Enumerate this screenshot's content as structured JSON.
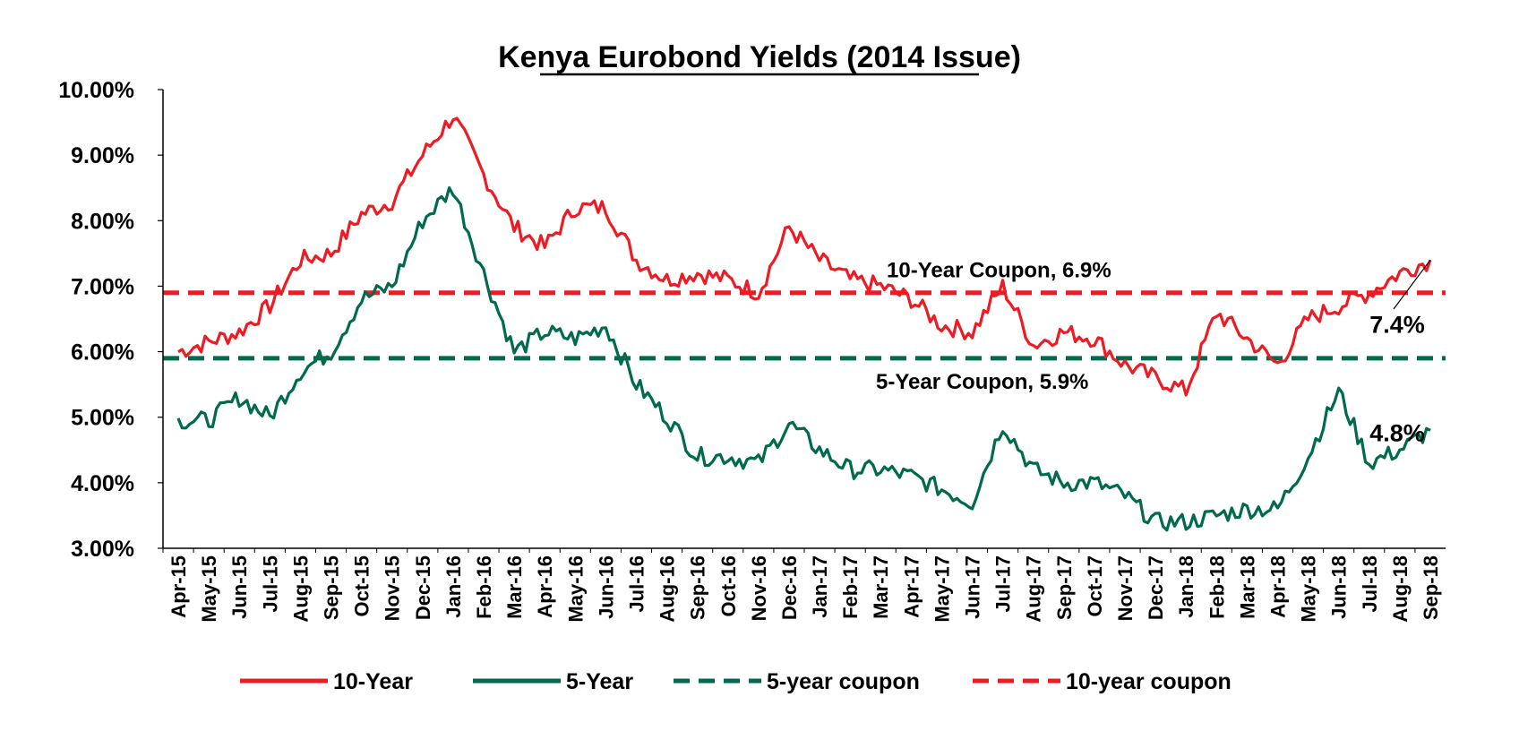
{
  "chart_data": {
    "type": "line",
    "title": "Kenya Eurobond  Yields (2014 Issue)",
    "xlabel": "",
    "ylabel": "",
    "ylim": [
      3.0,
      10.0
    ],
    "y_ticks": [
      "3.00%",
      "4.00%",
      "5.00%",
      "6.00%",
      "7.00%",
      "8.00%",
      "9.00%",
      "10.00%"
    ],
    "grid": false,
    "legend_position": "bottom",
    "categories": [
      "Apr-15",
      "May-15",
      "Jun-15",
      "Jul-15",
      "Aug-15",
      "Sep-15",
      "Oct-15",
      "Nov-15",
      "Dec-15",
      "Jan-16",
      "Feb-16",
      "Mar-16",
      "Apr-16",
      "May-16",
      "Jun-16",
      "Jul-16",
      "Aug-16",
      "Sep-16",
      "Oct-16",
      "Nov-16",
      "Dec-16",
      "Jan-17",
      "Feb-17",
      "Mar-17",
      "Apr-17",
      "May-17",
      "Jun-17",
      "Jul-17",
      "Aug-17",
      "Sep-17",
      "Oct-17",
      "Nov-17",
      "Dec-17",
      "Jan-18",
      "Feb-18",
      "Mar-18",
      "Apr-18",
      "May-18",
      "Jun-18",
      "Jul-18",
      "Aug-18",
      "Sep-18"
    ],
    "series": [
      {
        "name": "10-Year",
        "color": "#ed1c24",
        "style": "solid",
        "values": [
          6.0,
          6.15,
          6.3,
          6.7,
          7.4,
          7.5,
          8.1,
          8.3,
          9.0,
          9.6,
          8.7,
          7.9,
          7.6,
          8.2,
          8.2,
          7.4,
          7.1,
          7.2,
          7.1,
          6.9,
          7.9,
          7.4,
          7.1,
          7.0,
          6.8,
          6.4,
          6.3,
          7.0,
          6.1,
          6.3,
          6.2,
          5.8,
          5.6,
          5.4,
          6.6,
          6.2,
          5.8,
          6.5,
          6.7,
          6.9,
          7.2,
          7.4
        ]
      },
      {
        "name": "5-Year",
        "color": "#006a4e",
        "style": "solid",
        "values": [
          4.95,
          4.95,
          5.3,
          5.0,
          5.7,
          6.0,
          6.8,
          7.0,
          8.0,
          8.5,
          7.2,
          6.0,
          6.3,
          6.2,
          6.4,
          5.5,
          5.0,
          4.4,
          4.4,
          4.3,
          4.9,
          4.5,
          4.2,
          4.2,
          4.1,
          3.9,
          3.7,
          4.9,
          4.2,
          4.0,
          4.0,
          3.8,
          3.4,
          3.4,
          3.5,
          3.6,
          3.6,
          4.4,
          5.4,
          4.3,
          4.5,
          4.8
        ]
      },
      {
        "name": "5-year coupon",
        "color": "#006a4e",
        "style": "dashed",
        "constant": 5.9
      },
      {
        "name": "10-year coupon",
        "color": "#ed1c24",
        "style": "dashed",
        "constant": 6.9
      }
    ],
    "annotations": {
      "ten_year_coupon": "10-Year Coupon, 6.9%",
      "five_year_coupon": "5-Year Coupon, 5.9%",
      "ten_year_last": "7.4%",
      "five_year_last": "4.8%"
    }
  }
}
